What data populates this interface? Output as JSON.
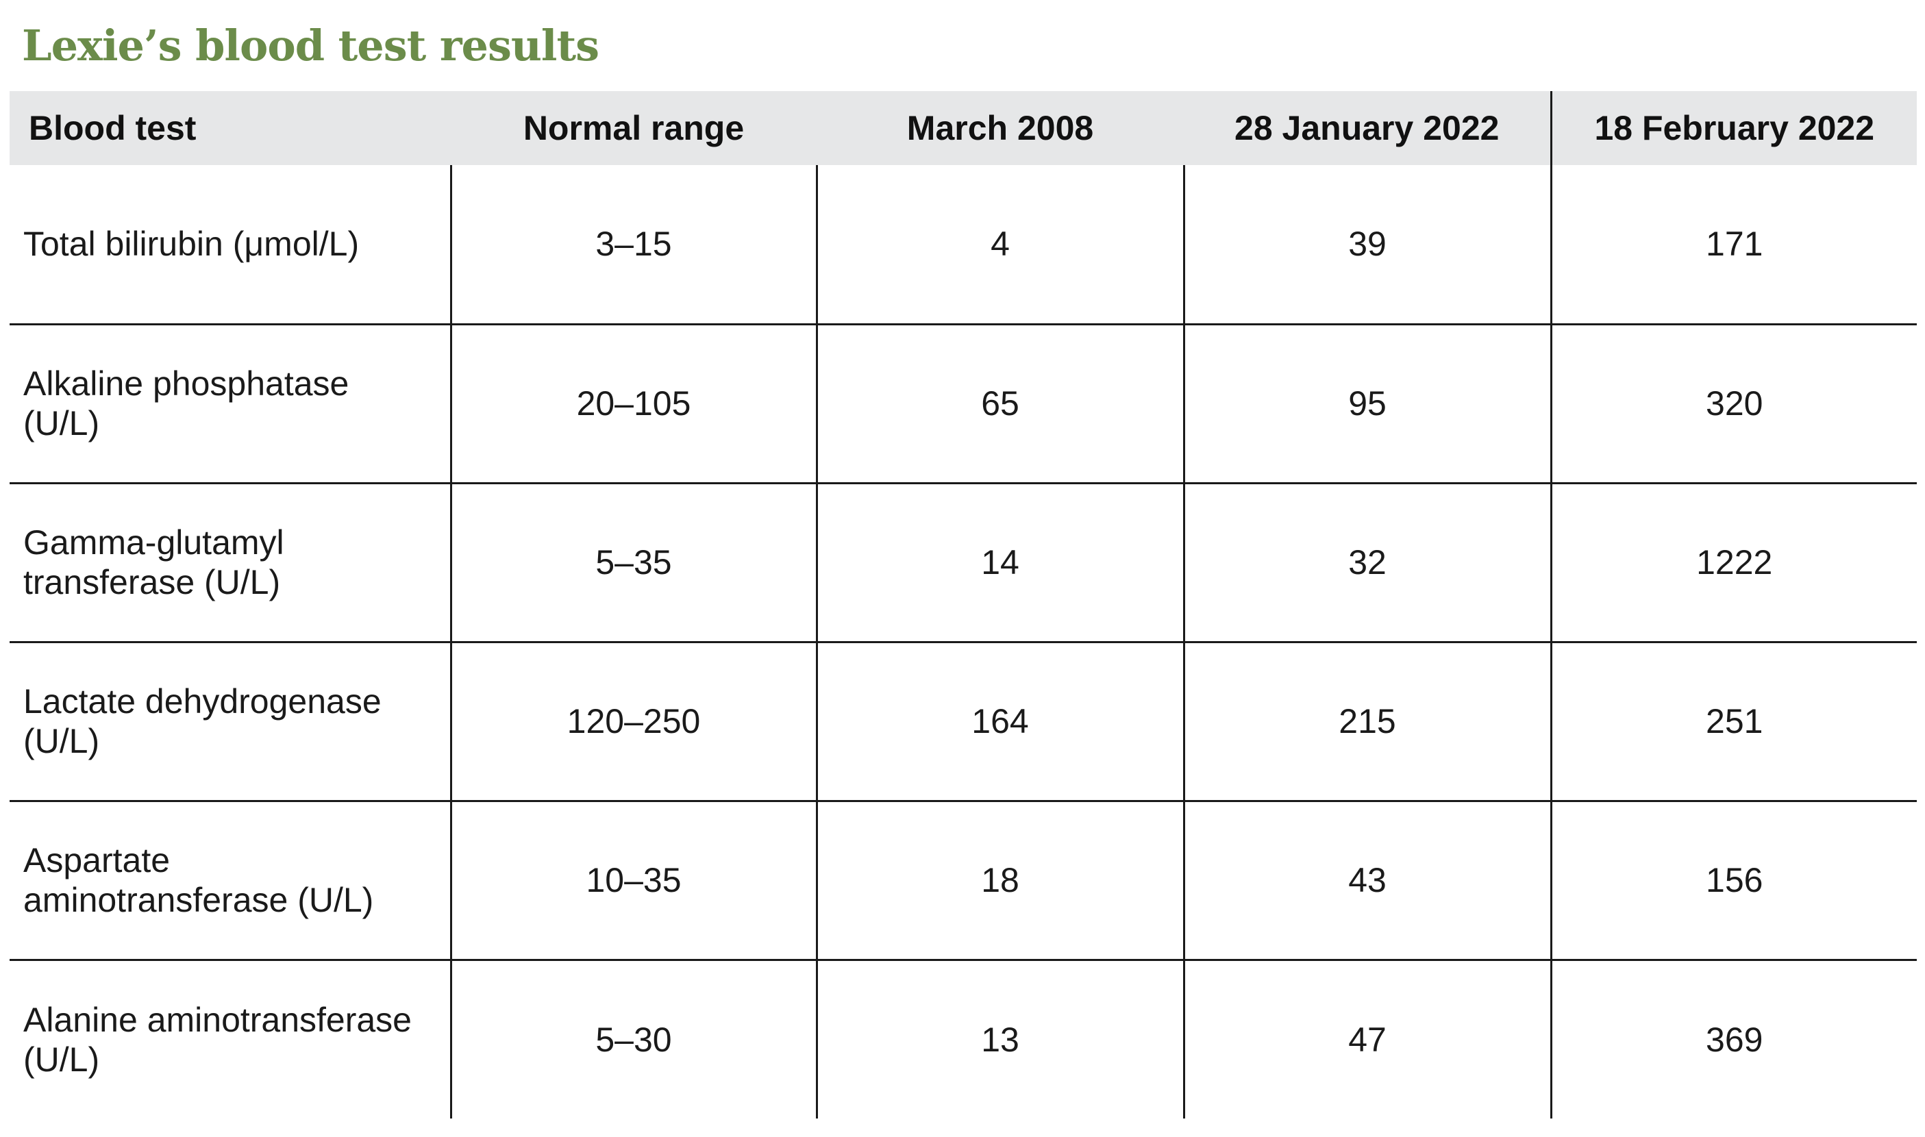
{
  "title": "Lexie’s blood test results",
  "table": {
    "headers": [
      "Blood test",
      "Normal range",
      "March 2008",
      "28 January 2022",
      "18 February 2022"
    ],
    "rows": [
      {
        "test": "Total bilirubin (μmol/L)",
        "normal": "3–15",
        "mar2008": "4",
        "jan2022": "39",
        "feb2022": "171"
      },
      {
        "test": "Alkaline phosphatase (U/L)",
        "normal": "20–105",
        "mar2008": "65",
        "jan2022": "95",
        "feb2022": "320"
      },
      {
        "test": "Gamma-glutamyl transferase (U/L)",
        "normal": "5–35",
        "mar2008": "14",
        "jan2022": "32",
        "feb2022": "1222"
      },
      {
        "test": "Lactate dehydrogenase (U/L)",
        "normal": "120–250",
        "mar2008": "164",
        "jan2022": "215",
        "feb2022": "251"
      },
      {
        "test": "Aspartate aminotransferase (U/L)",
        "normal": "10–35",
        "mar2008": "18",
        "jan2022": "43",
        "feb2022": "156"
      },
      {
        "test": "Alanine aminotransferase (U/L)",
        "normal": "5–30",
        "mar2008": "13",
        "jan2022": "47",
        "feb2022": "369"
      }
    ]
  }
}
